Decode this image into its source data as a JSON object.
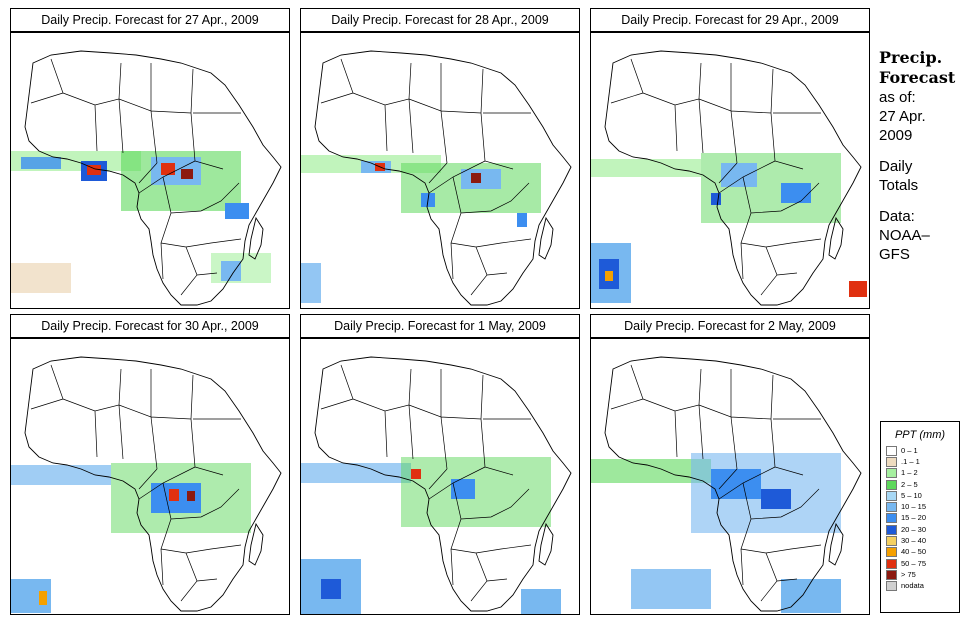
{
  "panels": [
    {
      "title": "Daily Precip. Forecast for  27 Apr., 2009"
    },
    {
      "title": "Daily Precip. Forecast for  28 Apr., 2009"
    },
    {
      "title": "Daily Precip. Forecast for  29 Apr., 2009"
    },
    {
      "title": "Daily Precip. Forecast for  30 Apr., 2009"
    },
    {
      "title": "Daily Precip. Forecast for  1 May, 2009"
    },
    {
      "title": "Daily Precip. Forecast for  2 May, 2009"
    }
  ],
  "sidebar": {
    "heading1": "Precip.",
    "heading2": "Forecast",
    "asof": "as of:",
    "date1": "27 Apr.",
    "date2": "2009",
    "daily1": "Daily",
    "daily2": "Totals",
    "data1": "Data:",
    "data2": "NOAA–",
    "data3": "GFS"
  },
  "legend": {
    "title": "PPT (mm)",
    "items": [
      {
        "label": "0 – 1",
        "color": "#ffffff"
      },
      {
        "label": ".1 – 1",
        "color": "#efdcc0"
      },
      {
        "label": "1 – 2",
        "color": "#a6f0a0"
      },
      {
        "label": "2 – 5",
        "color": "#5ed85c"
      },
      {
        "label": "5 – 10",
        "color": "#a8d8f5"
      },
      {
        "label": "10 – 15",
        "color": "#78b8f0"
      },
      {
        "label": "15 – 20",
        "color": "#3c8ef0"
      },
      {
        "label": "20 – 30",
        "color": "#1e5ad8"
      },
      {
        "label": "30 – 40",
        "color": "#f5d060"
      },
      {
        "label": "40 – 50",
        "color": "#f5a000"
      },
      {
        "label": "50 – 75",
        "color": "#e03010"
      },
      {
        "label": "> 75",
        "color": "#8c1a10"
      },
      {
        "label": "nodata",
        "color": "#d0d0d0"
      }
    ]
  }
}
